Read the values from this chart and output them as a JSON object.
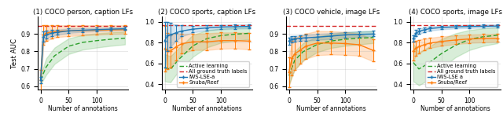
{
  "panels": [
    {
      "title": "(1) COCO person, caption LFs",
      "ylim": [
        0.58,
        1.0
      ],
      "yticks": [
        0.6,
        0.7,
        0.8,
        0.9
      ],
      "ylabel": "Test AUC",
      "show_legend": false,
      "gt_line": 0.945,
      "iws_x": [
        0,
        5,
        10,
        20,
        30,
        50,
        75,
        100,
        125,
        150
      ],
      "iws_y": [
        0.635,
        0.885,
        0.895,
        0.905,
        0.91,
        0.918,
        0.922,
        0.925,
        0.928,
        0.93
      ],
      "iws_y_lo": [
        0.615,
        0.855,
        0.875,
        0.888,
        0.895,
        0.906,
        0.912,
        0.916,
        0.92,
        0.922
      ],
      "iws_y_hi": [
        0.655,
        0.915,
        0.918,
        0.922,
        0.925,
        0.932,
        0.934,
        0.936,
        0.938,
        0.94
      ],
      "al_x": [
        0,
        10,
        25,
        50,
        75,
        100,
        125,
        150
      ],
      "al_y": [
        0.635,
        0.71,
        0.775,
        0.83,
        0.852,
        0.862,
        0.87,
        0.876
      ],
      "al_y_lo": [
        0.61,
        0.665,
        0.728,
        0.785,
        0.81,
        0.822,
        0.832,
        0.84
      ],
      "al_y_hi": [
        0.66,
        0.76,
        0.822,
        0.875,
        0.895,
        0.904,
        0.91,
        0.914
      ],
      "snuba_x": [
        0,
        5,
        10,
        20,
        30,
        50,
        75,
        100,
        125,
        150
      ],
      "snuba_y": [
        0.635,
        0.895,
        0.905,
        0.912,
        0.916,
        0.918,
        0.92,
        0.922,
        0.924,
        0.925
      ],
      "snuba_y_lo": [
        0.575,
        0.84,
        0.86,
        0.875,
        0.882,
        0.888,
        0.892,
        0.896,
        0.9,
        0.902
      ],
      "snuba_y_hi": [
        0.695,
        0.95,
        0.95,
        0.95,
        0.95,
        0.95,
        0.95,
        0.95,
        0.95,
        0.95
      ]
    },
    {
      "title": "(2) COCO sports, caption LFs",
      "ylim": [
        0.35,
        1.05
      ],
      "yticks": [
        0.4,
        0.6,
        0.8,
        1.0
      ],
      "ylabel": "",
      "show_legend": true,
      "legend_loc": "lower right",
      "gt_line": 0.97,
      "iws_x": [
        0,
        5,
        10,
        20,
        30,
        50,
        75,
        100,
        125,
        150
      ],
      "iws_y": [
        0.82,
        0.87,
        0.875,
        0.895,
        0.912,
        0.93,
        0.942,
        0.95,
        0.954,
        0.956
      ],
      "iws_y_lo": [
        0.56,
        0.72,
        0.76,
        0.82,
        0.86,
        0.898,
        0.918,
        0.928,
        0.934,
        0.937
      ],
      "iws_y_hi": [
        1.0,
        1.0,
        0.99,
        0.97,
        0.965,
        0.962,
        0.966,
        0.972,
        0.974,
        0.975
      ],
      "al_x": [
        0,
        10,
        25,
        50,
        75,
        100,
        125,
        150
      ],
      "al_y": [
        0.56,
        0.545,
        0.64,
        0.77,
        0.84,
        0.868,
        0.882,
        0.89
      ],
      "al_y_lo": [
        0.43,
        0.42,
        0.53,
        0.665,
        0.755,
        0.8,
        0.82,
        0.832
      ],
      "al_y_hi": [
        0.69,
        0.67,
        0.75,
        0.875,
        0.92,
        0.936,
        0.944,
        0.948
      ],
      "snuba_x": [
        0,
        5,
        10,
        20,
        30,
        50,
        75,
        100,
        125,
        150
      ],
      "snuba_y": [
        0.74,
        0.72,
        0.72,
        0.76,
        0.79,
        0.808,
        0.808,
        0.82,
        0.82,
        0.815
      ],
      "snuba_y_lo": [
        0.525,
        0.55,
        0.56,
        0.63,
        0.695,
        0.73,
        0.73,
        0.742,
        0.745,
        0.735
      ],
      "snuba_y_hi": [
        0.96,
        0.895,
        0.88,
        0.89,
        0.885,
        0.885,
        0.89,
        0.898,
        0.898,
        0.895
      ]
    },
    {
      "title": "(3) COCO vehicle, image LFs",
      "ylim": [
        0.58,
        1.0
      ],
      "yticks": [
        0.6,
        0.7,
        0.8,
        0.9
      ],
      "ylabel": "",
      "show_legend": false,
      "gt_line": 0.945,
      "iws_x": [
        0,
        5,
        10,
        20,
        30,
        50,
        75,
        100,
        125,
        150
      ],
      "iws_y": [
        0.86,
        0.87,
        0.872,
        0.876,
        0.878,
        0.882,
        0.888,
        0.895,
        0.898,
        0.9
      ],
      "iws_y_lo": [
        0.84,
        0.852,
        0.856,
        0.86,
        0.862,
        0.866,
        0.872,
        0.88,
        0.884,
        0.886
      ],
      "iws_y_hi": [
        0.88,
        0.888,
        0.89,
        0.893,
        0.895,
        0.9,
        0.906,
        0.912,
        0.916,
        0.918
      ],
      "al_x": [
        0,
        10,
        25,
        50,
        75,
        100,
        125,
        150
      ],
      "al_y": [
        0.66,
        0.748,
        0.798,
        0.84,
        0.86,
        0.87,
        0.876,
        0.88
      ],
      "al_y_lo": [
        0.61,
        0.695,
        0.748,
        0.795,
        0.82,
        0.832,
        0.84,
        0.848
      ],
      "al_y_hi": [
        0.71,
        0.8,
        0.848,
        0.886,
        0.9,
        0.91,
        0.914,
        0.918
      ],
      "snuba_x": [
        0,
        5,
        10,
        20,
        30,
        50,
        75,
        100,
        125,
        150
      ],
      "snuba_y": [
        0.68,
        0.76,
        0.785,
        0.808,
        0.83,
        0.848,
        0.848,
        0.845,
        0.838,
        0.805
      ],
      "snuba_y_lo": [
        0.595,
        0.66,
        0.692,
        0.728,
        0.758,
        0.778,
        0.782,
        0.78,
        0.775,
        0.742
      ],
      "snuba_y_hi": [
        0.765,
        0.86,
        0.878,
        0.888,
        0.902,
        0.918,
        0.916,
        0.912,
        0.902,
        0.87
      ]
    },
    {
      "title": "(4) COCO sports, image LFs",
      "ylim": [
        0.35,
        1.05
      ],
      "yticks": [
        0.4,
        0.6,
        0.8,
        1.0
      ],
      "ylabel": "",
      "show_legend": true,
      "legend_loc": "lower right",
      "gt_line": 0.97,
      "iws_x": [
        0,
        5,
        10,
        20,
        30,
        50,
        75,
        100,
        125,
        150
      ],
      "iws_y": [
        0.84,
        0.89,
        0.91,
        0.924,
        0.936,
        0.946,
        0.952,
        0.956,
        0.958,
        0.96
      ],
      "iws_y_lo": [
        0.808,
        0.862,
        0.884,
        0.902,
        0.916,
        0.928,
        0.936,
        0.94,
        0.944,
        0.946
      ],
      "iws_y_hi": [
        0.872,
        0.92,
        0.936,
        0.946,
        0.956,
        0.964,
        0.968,
        0.972,
        0.974,
        0.975
      ],
      "al_x": [
        0,
        10,
        25,
        50,
        75,
        100,
        125,
        150
      ],
      "al_y": [
        0.61,
        0.548,
        0.595,
        0.695,
        0.775,
        0.832,
        0.858,
        0.872
      ],
      "al_y_lo": [
        0.43,
        0.39,
        0.438,
        0.555,
        0.66,
        0.73,
        0.77,
        0.795
      ],
      "al_y_hi": [
        0.79,
        0.708,
        0.752,
        0.835,
        0.89,
        0.922,
        0.938,
        0.948
      ],
      "snuba_x": [
        0,
        5,
        10,
        20,
        30,
        50,
        75,
        100,
        125,
        150
      ],
      "snuba_y": [
        0.72,
        0.748,
        0.762,
        0.782,
        0.796,
        0.812,
        0.826,
        0.836,
        0.84,
        0.84
      ],
      "snuba_y_lo": [
        0.628,
        0.678,
        0.7,
        0.728,
        0.75,
        0.77,
        0.786,
        0.798,
        0.804,
        0.808
      ],
      "snuba_y_hi": [
        0.812,
        0.82,
        0.828,
        0.84,
        0.848,
        0.86,
        0.87,
        0.878,
        0.882,
        0.886
      ]
    }
  ],
  "al_color": "#2ca02c",
  "gt_color": "#d62728",
  "iws_color": "#1f77b4",
  "snuba_color": "#ff7f0e",
  "al_fill_alpha": 0.18,
  "snuba_fill_alpha": 0.22,
  "iws_fill_alpha": 0.18,
  "xlabel": "Number of annotations",
  "legend1_labels": [
    "Active learning",
    "All ground truth labels",
    "IWS-LSE-a",
    "Snuba/Reef"
  ],
  "legend2_labels": [
    "Active learning",
    "All ground truth labels",
    "IWS-LSE a",
    "Snuba/Reef"
  ]
}
